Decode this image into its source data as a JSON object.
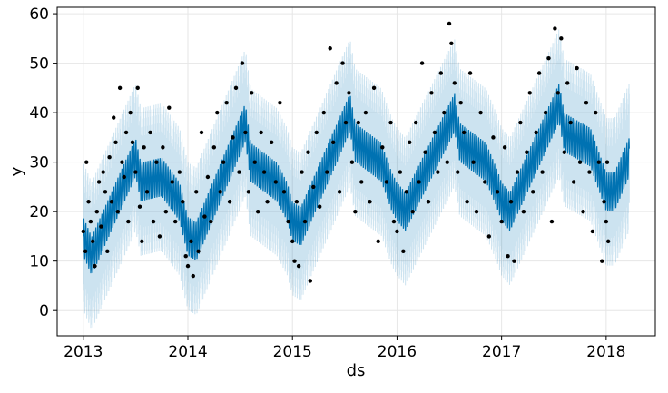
{
  "chart_data": {
    "type": "line",
    "title": "",
    "xlabel": "ds",
    "ylabel": "y",
    "xlim": [
      2012.75,
      2018.47
    ],
    "ylim": [
      -5.1,
      61.3
    ],
    "x_ticks": [
      2013,
      2014,
      2015,
      2016,
      2017,
      2018
    ],
    "x_tick_labels": [
      "2013",
      "2014",
      "2015",
      "2016",
      "2017",
      "2018"
    ],
    "y_ticks": [
      0,
      10,
      20,
      30,
      40,
      50,
      60
    ],
    "y_tick_labels": [
      "0",
      "10",
      "20",
      "30",
      "40",
      "50",
      "60"
    ],
    "grid": true,
    "colors": {
      "forecast": "#0072B2",
      "interval": "#0072B2",
      "observed": "#000000"
    },
    "forecast": {
      "name": "yhat",
      "trend_knots": [
        [
          2013.0,
          15
        ],
        [
          2013.08,
          11
        ],
        [
          2013.5,
          31
        ],
        [
          2013.55,
          26
        ],
        [
          2013.75,
          27
        ],
        [
          2013.92,
          22
        ],
        [
          2014.0,
          15
        ],
        [
          2014.08,
          14
        ],
        [
          2014.55,
          38
        ],
        [
          2014.6,
          30
        ],
        [
          2014.85,
          26
        ],
        [
          2014.95,
          22
        ],
        [
          2015.0,
          18
        ],
        [
          2015.08,
          17
        ],
        [
          2015.55,
          40
        ],
        [
          2015.6,
          34
        ],
        [
          2015.85,
          30
        ],
        [
          2015.95,
          24
        ],
        [
          2016.0,
          22
        ],
        [
          2016.08,
          20
        ],
        [
          2016.55,
          40
        ],
        [
          2016.6,
          34
        ],
        [
          2016.85,
          30
        ],
        [
          2016.95,
          25
        ],
        [
          2017.0,
          22
        ],
        [
          2017.08,
          20
        ],
        [
          2017.55,
          42
        ],
        [
          2017.6,
          36
        ],
        [
          2017.85,
          33
        ],
        [
          2017.95,
          27
        ],
        [
          2018.0,
          24
        ],
        [
          2018.08,
          24
        ],
        [
          2018.22,
          31
        ]
      ],
      "weekly_amplitude": 4,
      "interval_half_width": 11,
      "start": 2013.0,
      "end": 2018.22
    },
    "observed": [
      [
        2013.0,
        16
      ],
      [
        2013.02,
        12
      ],
      [
        2013.03,
        30
      ],
      [
        2013.05,
        22
      ],
      [
        2013.07,
        18
      ],
      [
        2013.09,
        14
      ],
      [
        2013.11,
        9
      ],
      [
        2013.13,
        20
      ],
      [
        2013.15,
        26
      ],
      [
        2013.17,
        17
      ],
      [
        2013.19,
        28
      ],
      [
        2013.21,
        24
      ],
      [
        2013.23,
        12
      ],
      [
        2013.25,
        31
      ],
      [
        2013.27,
        22
      ],
      [
        2013.29,
        39
      ],
      [
        2013.31,
        34
      ],
      [
        2013.33,
        20
      ],
      [
        2013.35,
        45
      ],
      [
        2013.37,
        30
      ],
      [
        2013.39,
        27
      ],
      [
        2013.41,
        36
      ],
      [
        2013.43,
        18
      ],
      [
        2013.45,
        40
      ],
      [
        2013.47,
        34
      ],
      [
        2013.5,
        28
      ],
      [
        2013.52,
        45
      ],
      [
        2013.54,
        21
      ],
      [
        2013.56,
        14
      ],
      [
        2013.58,
        33
      ],
      [
        2013.61,
        24
      ],
      [
        2013.64,
        36
      ],
      [
        2013.67,
        18
      ],
      [
        2013.7,
        30
      ],
      [
        2013.73,
        15
      ],
      [
        2013.76,
        33
      ],
      [
        2013.79,
        20
      ],
      [
        2013.82,
        41
      ],
      [
        2013.85,
        26
      ],
      [
        2013.88,
        18
      ],
      [
        2013.92,
        28
      ],
      [
        2013.95,
        22
      ],
      [
        2013.98,
        11
      ],
      [
        2014.0,
        9
      ],
      [
        2014.03,
        14
      ],
      [
        2014.05,
        7
      ],
      [
        2014.08,
        24
      ],
      [
        2014.1,
        12
      ],
      [
        2014.13,
        36
      ],
      [
        2014.16,
        19
      ],
      [
        2014.19,
        27
      ],
      [
        2014.22,
        18
      ],
      [
        2014.25,
        33
      ],
      [
        2014.28,
        40
      ],
      [
        2014.31,
        24
      ],
      [
        2014.34,
        30
      ],
      [
        2014.37,
        42
      ],
      [
        2014.4,
        22
      ],
      [
        2014.43,
        35
      ],
      [
        2014.46,
        45
      ],
      [
        2014.49,
        28
      ],
      [
        2014.52,
        50
      ],
      [
        2014.55,
        36
      ],
      [
        2014.58,
        24
      ],
      [
        2014.61,
        44
      ],
      [
        2014.64,
        30
      ],
      [
        2014.67,
        20
      ],
      [
        2014.7,
        36
      ],
      [
        2014.73,
        28
      ],
      [
        2014.76,
        22
      ],
      [
        2014.8,
        34
      ],
      [
        2014.84,
        26
      ],
      [
        2014.88,
        42
      ],
      [
        2014.92,
        24
      ],
      [
        2014.96,
        18
      ],
      [
        2015.0,
        14
      ],
      [
        2015.02,
        10
      ],
      [
        2015.04,
        22
      ],
      [
        2015.06,
        9
      ],
      [
        2015.09,
        28
      ],
      [
        2015.12,
        18
      ],
      [
        2015.15,
        32
      ],
      [
        2015.17,
        6
      ],
      [
        2015.2,
        25
      ],
      [
        2015.23,
        36
      ],
      [
        2015.26,
        21
      ],
      [
        2015.3,
        40
      ],
      [
        2015.33,
        28
      ],
      [
        2015.36,
        53
      ],
      [
        2015.39,
        34
      ],
      [
        2015.42,
        46
      ],
      [
        2015.45,
        24
      ],
      [
        2015.48,
        50
      ],
      [
        2015.51,
        38
      ],
      [
        2015.54,
        44
      ],
      [
        2015.57,
        30
      ],
      [
        2015.6,
        20
      ],
      [
        2015.63,
        38
      ],
      [
        2015.66,
        26
      ],
      [
        2015.7,
        40
      ],
      [
        2015.74,
        22
      ],
      [
        2015.78,
        45
      ],
      [
        2015.82,
        14
      ],
      [
        2015.86,
        33
      ],
      [
        2015.9,
        26
      ],
      [
        2015.94,
        38
      ],
      [
        2015.97,
        18
      ],
      [
        2016.0,
        16
      ],
      [
        2016.03,
        28
      ],
      [
        2016.06,
        12
      ],
      [
        2016.09,
        24
      ],
      [
        2016.12,
        34
      ],
      [
        2016.15,
        20
      ],
      [
        2016.18,
        38
      ],
      [
        2016.21,
        26
      ],
      [
        2016.24,
        50
      ],
      [
        2016.27,
        32
      ],
      [
        2016.3,
        22
      ],
      [
        2016.33,
        44
      ],
      [
        2016.36,
        36
      ],
      [
        2016.39,
        28
      ],
      [
        2016.42,
        48
      ],
      [
        2016.45,
        40
      ],
      [
        2016.48,
        30
      ],
      [
        2016.5,
        58
      ],
      [
        2016.52,
        54
      ],
      [
        2016.55,
        46
      ],
      [
        2016.58,
        28
      ],
      [
        2016.61,
        42
      ],
      [
        2016.64,
        36
      ],
      [
        2016.67,
        22
      ],
      [
        2016.7,
        48
      ],
      [
        2016.73,
        30
      ],
      [
        2016.76,
        20
      ],
      [
        2016.8,
        40
      ],
      [
        2016.84,
        26
      ],
      [
        2016.88,
        15
      ],
      [
        2016.92,
        35
      ],
      [
        2016.96,
        24
      ],
      [
        2017.0,
        18
      ],
      [
        2017.03,
        33
      ],
      [
        2017.06,
        11
      ],
      [
        2017.09,
        22
      ],
      [
        2017.12,
        10
      ],
      [
        2017.15,
        28
      ],
      [
        2017.18,
        38
      ],
      [
        2017.21,
        20
      ],
      [
        2017.24,
        32
      ],
      [
        2017.27,
        44
      ],
      [
        2017.3,
        24
      ],
      [
        2017.33,
        36
      ],
      [
        2017.36,
        48
      ],
      [
        2017.39,
        28
      ],
      [
        2017.42,
        40
      ],
      [
        2017.45,
        51
      ],
      [
        2017.48,
        18
      ],
      [
        2017.51,
        57
      ],
      [
        2017.54,
        44
      ],
      [
        2017.57,
        55
      ],
      [
        2017.6,
        32
      ],
      [
        2017.63,
        46
      ],
      [
        2017.66,
        38
      ],
      [
        2017.69,
        26
      ],
      [
        2017.72,
        49
      ],
      [
        2017.75,
        30
      ],
      [
        2017.78,
        20
      ],
      [
        2017.81,
        42
      ],
      [
        2017.84,
        28
      ],
      [
        2017.87,
        16
      ],
      [
        2017.9,
        40
      ],
      [
        2017.93,
        30
      ],
      [
        2017.96,
        10
      ],
      [
        2017.98,
        22
      ],
      [
        2018.0,
        18
      ],
      [
        2018.01,
        30
      ],
      [
        2018.02,
        14
      ]
    ]
  }
}
